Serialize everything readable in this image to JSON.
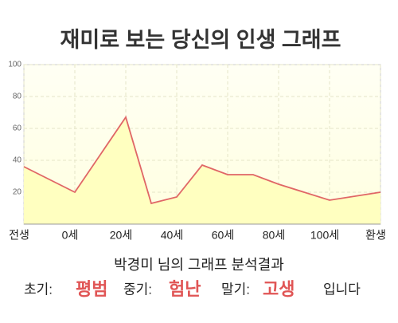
{
  "chart_data": {
    "type": "line",
    "title": "재미로 보는 당신의 인생 그래프",
    "x": [
      -20,
      0,
      20,
      30,
      40,
      50,
      60,
      70,
      80,
      100,
      120
    ],
    "series": [
      {
        "name": null,
        "color": "#e06666",
        "values": [
          36,
          20,
          67,
          13,
          17,
          37,
          31,
          31,
          25,
          15,
          20
        ]
      }
    ],
    "xlim": [
      -20,
      120
    ],
    "xticks": [
      {
        "value": -20,
        "label": "전생"
      },
      {
        "value": 0,
        "label": "0세"
      },
      {
        "value": 20,
        "label": "20세"
      },
      {
        "value": 40,
        "label": "40세"
      },
      {
        "value": 60,
        "label": "60세"
      },
      {
        "value": 80,
        "label": "80세"
      },
      {
        "value": 100,
        "label": "100세"
      },
      {
        "value": 120,
        "label": "환생"
      }
    ],
    "ylim": [
      0,
      100
    ],
    "yticks": [
      20,
      40,
      60,
      80,
      100
    ],
    "grid": true,
    "area_color": "#ffffc0"
  },
  "analysis": {
    "heading": "박경미 님의 그래프 분석결과",
    "parts": [
      {
        "label": "초기:",
        "result": "평범"
      },
      {
        "label": "중기:",
        "result": "험난"
      },
      {
        "label": "말기:",
        "result": "고생"
      }
    ],
    "ending": "입니다"
  }
}
